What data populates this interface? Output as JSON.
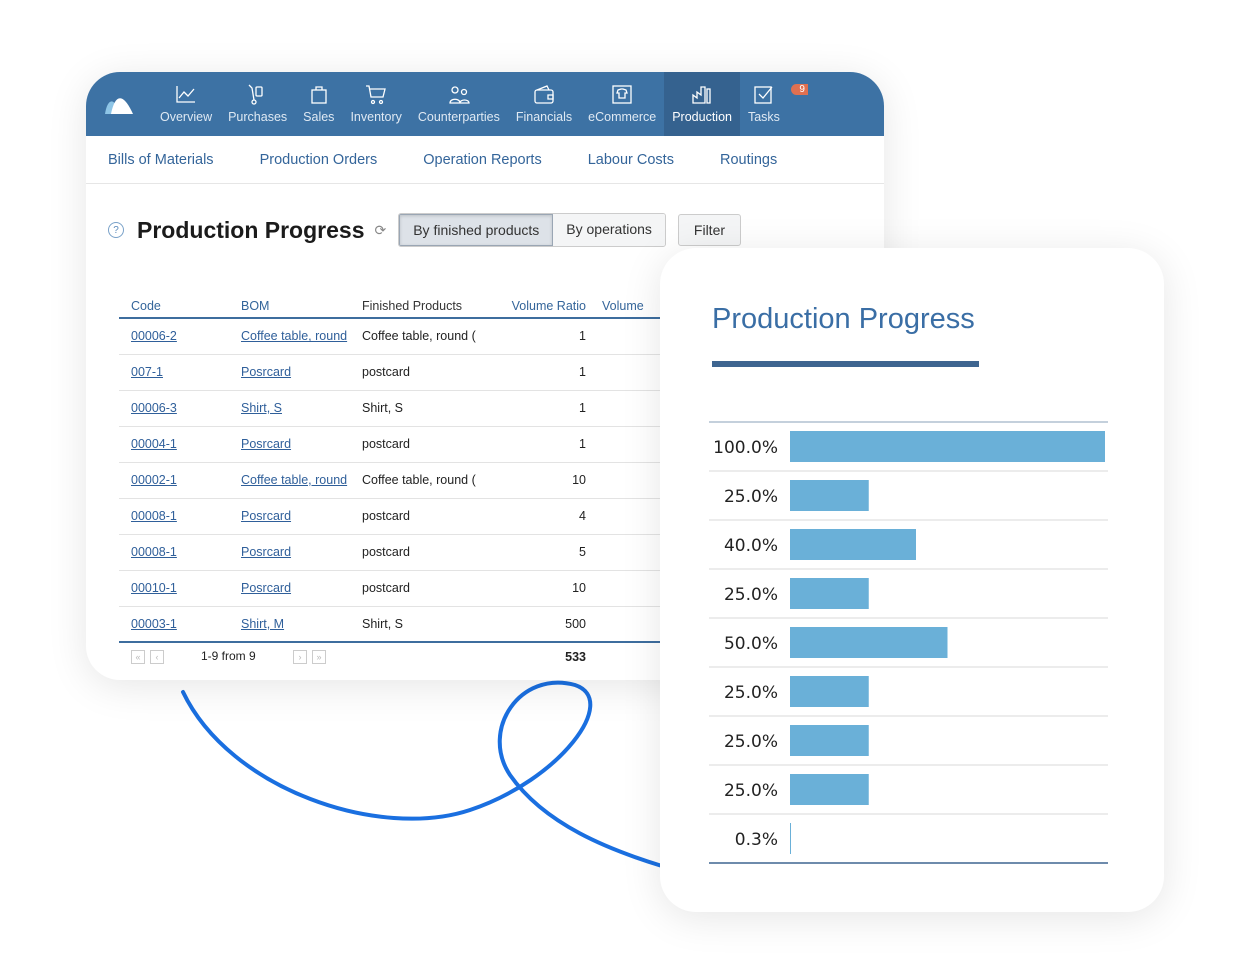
{
  "nav": {
    "items": [
      {
        "label": "Overview",
        "icon": "chart-line-icon"
      },
      {
        "label": "Purchases",
        "icon": "hand-truck-icon"
      },
      {
        "label": "Sales",
        "icon": "shopping-bag-icon"
      },
      {
        "label": "Inventory",
        "icon": "cart-icon"
      },
      {
        "label": "Counterparties",
        "icon": "people-icon"
      },
      {
        "label": "Financials",
        "icon": "wallet-icon"
      },
      {
        "label": "eCommerce",
        "icon": "shirt-screen-icon"
      },
      {
        "label": "Production",
        "icon": "factory-icon"
      },
      {
        "label": "Tasks",
        "icon": "checkbox-icon"
      }
    ],
    "active": "Production",
    "tasks_badge": "9"
  },
  "subnav": [
    "Bills of Materials",
    "Production Orders",
    "Operation Reports",
    "Labour Costs",
    "Routings"
  ],
  "page": {
    "title": "Production Progress",
    "toggle": [
      "By finished products",
      "By operations"
    ],
    "filter": "Filter"
  },
  "table": {
    "headers": [
      "Code",
      "BOM",
      "Finished Products",
      "Volume Ratio",
      "Volume"
    ],
    "rows": [
      [
        "00006-2",
        "Coffee table, round",
        "Coffee table, round (",
        "1"
      ],
      [
        "007-1",
        "Posrcard",
        "postcard",
        "1"
      ],
      [
        "00006-3",
        "Shirt, S",
        "Shirt, S",
        "1"
      ],
      [
        "00004-1",
        "Posrcard",
        "postcard",
        "1"
      ],
      [
        "00002-1",
        "Coffee table, round",
        "Coffee table, round (",
        "10"
      ],
      [
        "00008-1",
        "Posrcard",
        "postcard",
        "4"
      ],
      [
        "00008-1",
        "Posrcard",
        "postcard",
        "5"
      ],
      [
        "00010-1",
        "Posrcard",
        "postcard",
        "10"
      ],
      [
        "00003-1",
        "Shirt, M",
        "Shirt, S",
        "500"
      ]
    ],
    "pagination": "1-9 from 9",
    "total": "533"
  },
  "chart_data": {
    "type": "bar",
    "orientation": "horizontal",
    "title": "Production Progress",
    "categories": [
      "100.0%",
      "25.0%",
      "40.0%",
      "25.0%",
      "50.0%",
      "25.0%",
      "25.0%",
      "25.0%",
      "0.3%"
    ],
    "values": [
      100,
      25,
      40,
      25,
      50,
      25,
      25,
      25,
      0.3
    ],
    "xlim": [
      0,
      100
    ],
    "bar_color": "#6ab0d8"
  }
}
